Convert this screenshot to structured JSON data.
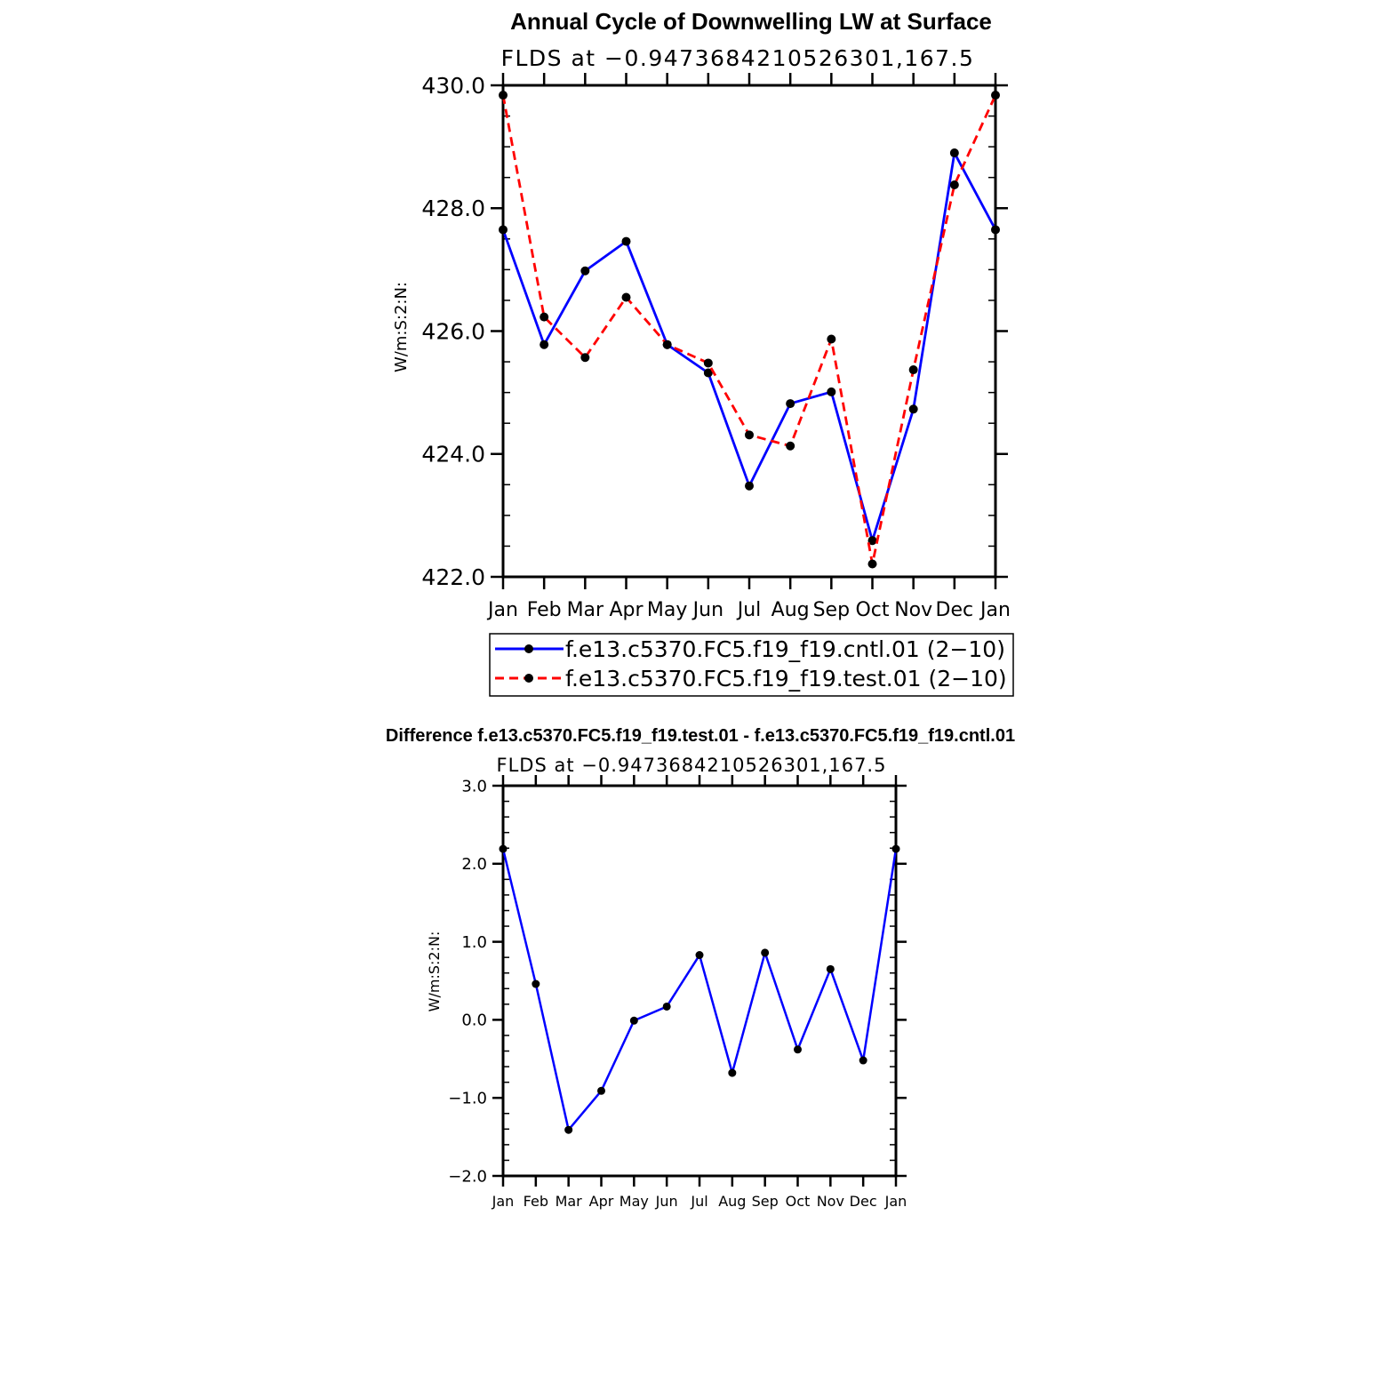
{
  "colors": {
    "control": "#0000ff",
    "test": "#ff0000",
    "marker": "#000000",
    "axes": "#000000"
  },
  "chart_data": [
    {
      "type": "line",
      "title": "Annual Cycle of Downwelling LW at Surface",
      "subtitle": "FLDS at −0.9473684210526301,167.5",
      "ylabel": "W/m:S:2:N:",
      "categories": [
        "Jan",
        "Feb",
        "Mar",
        "Apr",
        "May",
        "Jun",
        "Jul",
        "Aug",
        "Sep",
        "Oct",
        "Nov",
        "Dec",
        "Jan"
      ],
      "ylim": [
        422.0,
        430.0
      ],
      "yticks": [
        "422.0",
        "424.0",
        "426.0",
        "428.0",
        "430.0"
      ],
      "legend": "below",
      "series": [
        {
          "name": "f.e13.c5370.FC5.f19_f19.cntl.01 (2−10)",
          "style": "solid",
          "values": [
            427.65,
            425.78,
            426.98,
            427.46,
            425.78,
            425.32,
            423.48,
            424.82,
            425.01,
            422.59,
            424.73,
            428.9,
            427.65
          ]
        },
        {
          "name": "f.e13.c5370.FC5.f19_f19.test.01 (2−10)",
          "style": "dashed",
          "values": [
            429.84,
            426.23,
            425.57,
            426.55,
            425.78,
            425.48,
            424.31,
            424.13,
            425.87,
            422.21,
            425.37,
            428.38,
            429.84
          ]
        }
      ]
    },
    {
      "type": "line",
      "title": "Difference f.e13.c5370.FC5.f19_f19.test.01 - f.e13.c5370.FC5.f19_f19.cntl.01",
      "subtitle": "FLDS at −0.9473684210526301,167.5",
      "ylabel": "W/m:S:2:N:",
      "categories": [
        "Jan",
        "Feb",
        "Mar",
        "Apr",
        "May",
        "Jun",
        "Jul",
        "Aug",
        "Sep",
        "Oct",
        "Nov",
        "Dec",
        "Jan"
      ],
      "ylim": [
        -2.0,
        3.0
      ],
      "yticks": [
        "−2.0",
        "−1.0",
        "0.0",
        "1.0",
        "2.0",
        "3.0"
      ],
      "series": [
        {
          "style": "solid",
          "values": [
            2.19,
            0.46,
            -1.41,
            -0.91,
            -0.01,
            0.17,
            0.83,
            -0.68,
            0.86,
            -0.38,
            0.65,
            -0.52,
            2.19
          ]
        }
      ]
    }
  ]
}
